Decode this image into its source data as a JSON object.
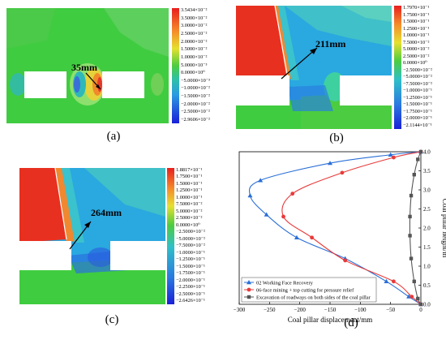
{
  "panels": {
    "a": {
      "caption": "(a)",
      "annotation": "35mm",
      "colorbar_labels": [
        "3.5434×10⁻²",
        "3.5000×10⁻²",
        "3.0000×10⁻²",
        "2.5000×10⁻²",
        "2.0000×10⁻²",
        "1.5000×10⁻²",
        "1.0000×10⁻²",
        "5.0000×10⁻³",
        "0.0000×10⁰",
        "−5.0000×10⁻³",
        "−1.0000×10⁻²",
        "−1.5000×10⁻²",
        "−2.0000×10⁻²",
        "−2.5000×10⁻²",
        "−2.9606×10⁻²"
      ]
    },
    "b": {
      "caption": "(b)",
      "annotation": "211mm",
      "colorbar_labels": [
        "1.7970×10⁻¹",
        "1.7500×10⁻¹",
        "1.5000×10⁻¹",
        "1.2500×10⁻¹",
        "1.0000×10⁻¹",
        "7.5000×10⁻²",
        "5.0000×10⁻²",
        "2.5000×10⁻²",
        "0.0000×10⁰",
        "−2.5000×10⁻²",
        "−5.0000×10⁻²",
        "−7.5000×10⁻²",
        "−1.0000×10⁻¹",
        "−1.2500×10⁻¹",
        "−1.5000×10⁻¹",
        "−1.7500×10⁻¹",
        "−2.0000×10⁻¹",
        "−2.1144×10⁻¹"
      ]
    },
    "c": {
      "caption": "(c)",
      "annotation": "264mm",
      "colorbar_labels": [
        "1.8817×10⁻¹",
        "1.7500×10⁻¹",
        "1.5000×10⁻¹",
        "1.2500×10⁻¹",
        "1.0000×10⁻¹",
        "7.5000×10⁻²",
        "5.0000×10⁻²",
        "2.5000×10⁻²",
        "0.0000×10⁰",
        "−2.5000×10⁻²",
        "−5.0000×10⁻²",
        "−7.5000×10⁻²",
        "−1.0000×10⁻¹",
        "−1.2500×10⁻¹",
        "−1.5000×10⁻¹",
        "−1.7500×10⁻¹",
        "−2.0000×10⁻¹",
        "−2.2500×10⁻¹",
        "−2.5000×10⁻¹",
        "−2.6426×10⁻¹"
      ]
    },
    "d": {
      "caption": "(d)"
    }
  },
  "chart_data": {
    "type": "line",
    "xlabel": "Coal pillar displacement/mm",
    "ylabel": "Coal pillar height/m",
    "xlim": [
      -300,
      0
    ],
    "ylim": [
      0,
      4
    ],
    "x_ticks": [
      -300,
      -250,
      -200,
      -150,
      -100,
      -50,
      0
    ],
    "y_ticks": [
      0,
      0.5,
      1.0,
      1.5,
      2.0,
      2.5,
      3.0,
      3.5,
      4.0
    ],
    "x_tick_labels": [
      "−300",
      "−250",
      "−200",
      "−150",
      "−100",
      "−50",
      "0"
    ],
    "y_tick_labels": [
      "0.0",
      "0.5",
      "1.0",
      "1.5",
      "2.0",
      "2.5",
      "3.0",
      "3.5",
      "4.0"
    ],
    "legend_position": "bottom-left",
    "series": [
      {
        "name": "02 Working Face Recovery",
        "color": "#2a6fd6",
        "marker": "triangle",
        "points": [
          [
            0,
            0
          ],
          [
            -20,
            0.2
          ],
          [
            -57,
            0.6
          ],
          [
            -125,
            1.2
          ],
          [
            -205,
            1.75
          ],
          [
            -255,
            2.35
          ],
          [
            -282,
            2.85
          ],
          [
            -265,
            3.25
          ],
          [
            -150,
            3.7
          ],
          [
            -50,
            3.92
          ],
          [
            0,
            4.0
          ]
        ]
      },
      {
        "name": "06-face mining + top cutting for pressure relief",
        "color": "#e83a3a",
        "marker": "circle",
        "points": [
          [
            0,
            0
          ],
          [
            -15,
            0.2
          ],
          [
            -45,
            0.6
          ],
          [
            -125,
            1.15
          ],
          [
            -180,
            1.75
          ],
          [
            -227,
            2.3
          ],
          [
            -212,
            2.9
          ],
          [
            -130,
            3.45
          ],
          [
            -45,
            3.85
          ],
          [
            0,
            4.0
          ]
        ]
      },
      {
        "name": "Excavation of roadways on both sides of the coal pillar",
        "color": "#555555",
        "marker": "square",
        "points": [
          [
            0,
            0
          ],
          [
            -5,
            0.15
          ],
          [
            -11,
            0.6
          ],
          [
            -16,
            1.2
          ],
          [
            -18,
            1.8
          ],
          [
            -18,
            2.3
          ],
          [
            -16,
            2.85
          ],
          [
            -11,
            3.4
          ],
          [
            -5,
            3.8
          ],
          [
            0,
            4.0
          ]
        ]
      }
    ]
  }
}
